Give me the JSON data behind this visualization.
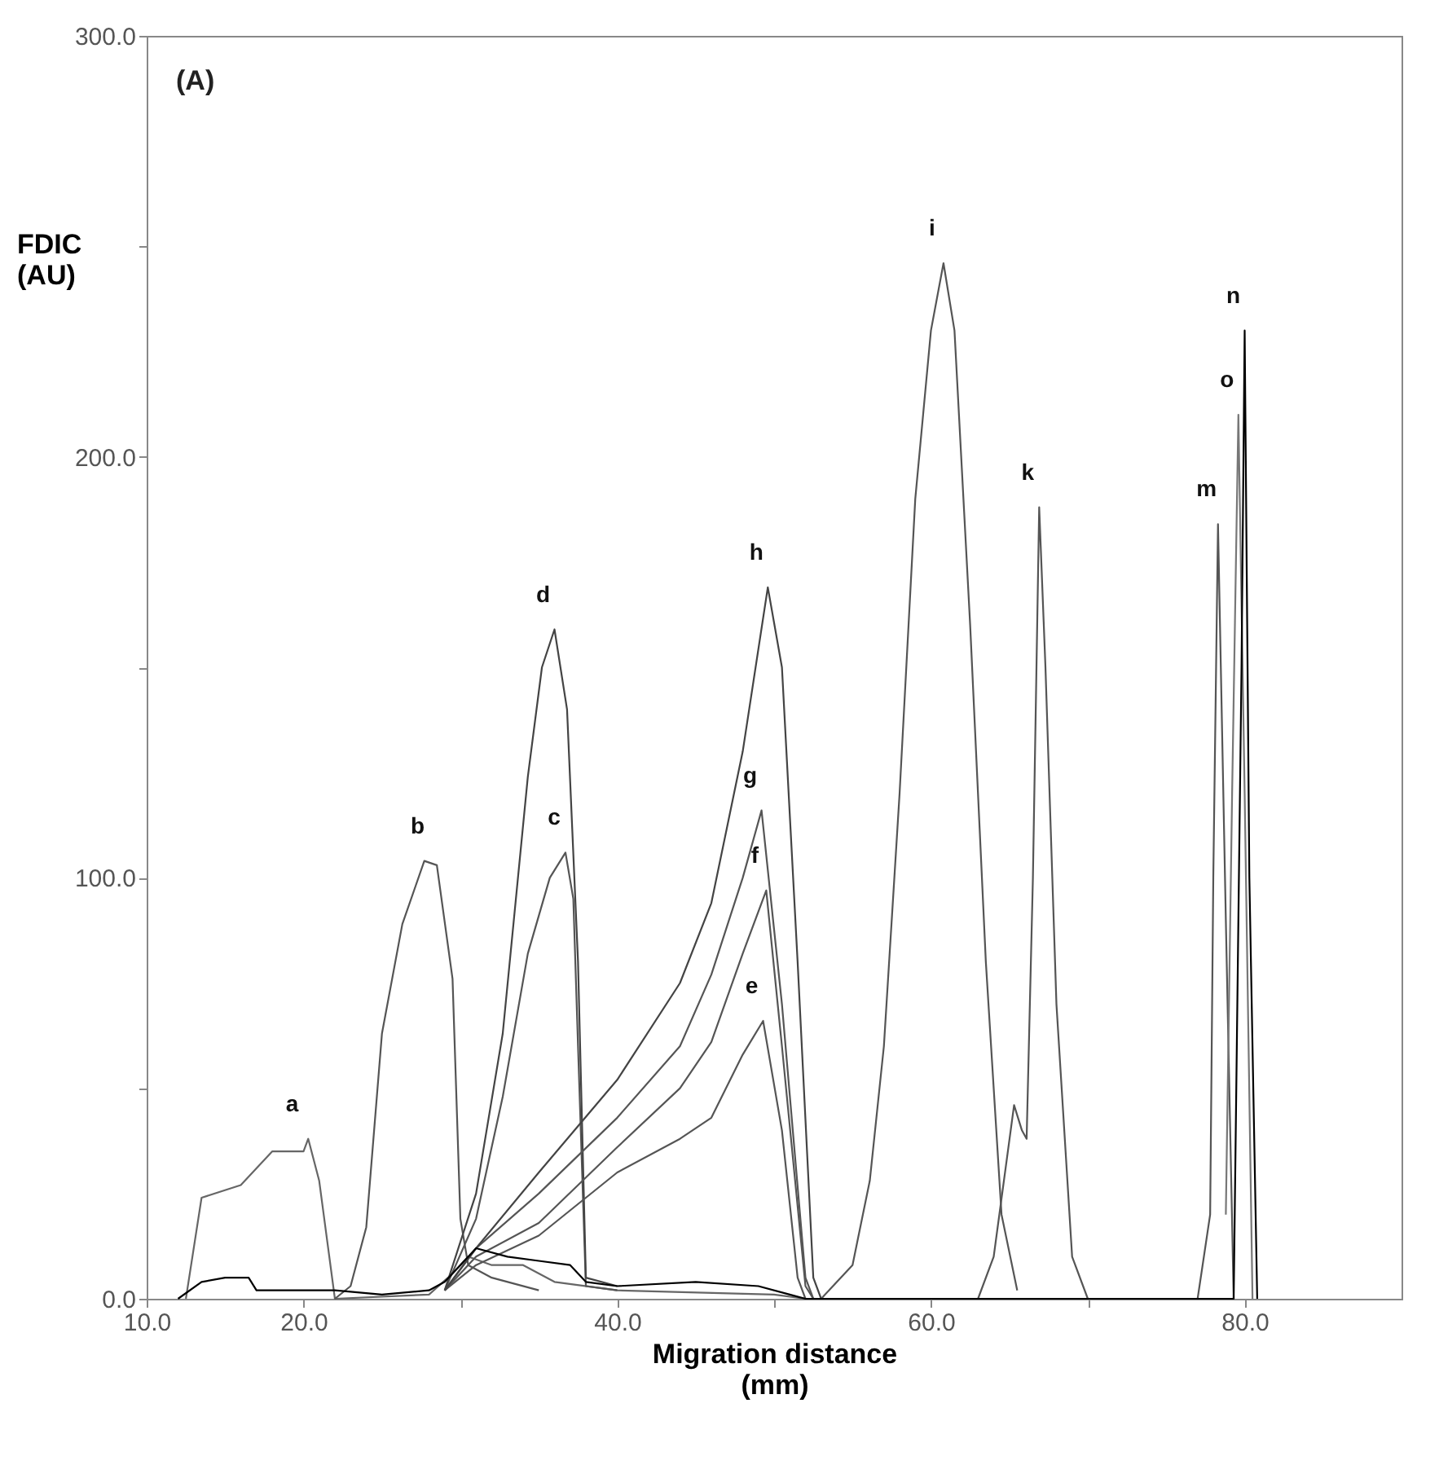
{
  "chart_data": {
    "type": "line",
    "xlabel": "Migration distance\n(mm)",
    "ylabel": "FDIC\n(AU)",
    "xlim": [
      10,
      90
    ],
    "ylim": [
      0,
      300
    ],
    "xticks": [
      {
        "value": 10,
        "label": "10.0"
      },
      {
        "value": 20,
        "label": "20.0"
      },
      {
        "value": 30,
        "label": null
      },
      {
        "value": 40,
        "label": "40.0"
      },
      {
        "value": 50,
        "label": null
      },
      {
        "value": 60,
        "label": "60.0"
      },
      {
        "value": 70,
        "label": null
      },
      {
        "value": 80,
        "label": "80.0"
      }
    ],
    "yticks": [
      {
        "value": 0,
        "label": "0.0"
      },
      {
        "value": 50,
        "label": null
      },
      {
        "value": 100,
        "label": "100.0"
      },
      {
        "value": 150,
        "label": null
      },
      {
        "value": 200,
        "label": "200.0"
      },
      {
        "value": 250,
        "label": null
      },
      {
        "value": 300,
        "label": "300.0"
      }
    ],
    "grid": false,
    "legend": false,
    "marker": "none",
    "line_style": "solid",
    "series": [
      {
        "color": "#666666",
        "x": [
          12.5,
          13.5,
          16,
          18,
          20,
          20.3,
          21,
          22,
          28,
          29.5,
          30.5,
          32,
          34,
          36,
          40,
          50,
          52
        ],
        "values": [
          0,
          24,
          27,
          35,
          35,
          38,
          28,
          0,
          1,
          6,
          10,
          8,
          8,
          4,
          2,
          1,
          0
        ]
      },
      {
        "color": "#555555",
        "x": [
          22,
          23,
          24,
          25,
          26.3,
          27.7,
          28.5,
          29.5,
          30,
          30.5,
          32,
          35
        ],
        "values": [
          0,
          3,
          17,
          63,
          89,
          104,
          103,
          76,
          19,
          8,
          5,
          2
        ]
      },
      {
        "color": "#555555",
        "x": [
          29,
          31,
          32.7,
          34.3,
          35.7,
          36.7,
          37.2,
          37.5,
          38,
          40
        ],
        "values": [
          2,
          19,
          48,
          82,
          100,
          106,
          95,
          60,
          3,
          2
        ]
      },
      {
        "color": "#444444",
        "x": [
          29,
          31,
          32.7,
          34.3,
          35.2,
          36,
          36.8,
          37.5,
          38,
          40
        ],
        "values": [
          2,
          25,
          63,
          124,
          150,
          159,
          140,
          80,
          5,
          3
        ]
      },
      {
        "color": "#555555",
        "x": [
          29,
          31,
          35,
          40,
          44,
          46,
          48,
          49.3,
          50.5,
          51.5,
          52
        ],
        "values": [
          2,
          8,
          15,
          30,
          38,
          43,
          58,
          66,
          40,
          5,
          0
        ]
      },
      {
        "color": "#555555",
        "x": [
          29,
          31,
          35,
          40,
          44,
          46,
          48,
          49.5,
          50.5,
          52,
          52.5
        ],
        "values": [
          2,
          10,
          18,
          36,
          50,
          61,
          82,
          97,
          60,
          3,
          0
        ]
      },
      {
        "color": "#555555",
        "x": [
          29,
          31,
          35,
          40,
          44,
          46,
          48,
          49.2,
          50.5,
          52,
          52.5
        ],
        "values": [
          2,
          12,
          25,
          43,
          60,
          77,
          100,
          116,
          70,
          5,
          0
        ]
      },
      {
        "color": "#444444",
        "x": [
          29,
          31,
          35,
          40,
          44,
          46,
          48,
          49.6,
          50.5,
          51.5,
          52.5,
          53
        ],
        "values": [
          2,
          12,
          30,
          52,
          75,
          94,
          130,
          169,
          150,
          80,
          5,
          0
        ]
      },
      {
        "color": "#555555",
        "x": [
          53,
          55,
          56.1,
          57,
          58,
          59,
          60,
          60.8,
          61.5,
          62.5,
          63.5,
          64.5,
          65.5
        ],
        "values": [
          0,
          8,
          28,
          60,
          120,
          190,
          230,
          246,
          230,
          160,
          80,
          20,
          2
        ]
      },
      {
        "color": "#555555",
        "x": [
          63,
          64,
          65.3,
          65.8,
          66.1,
          66.5,
          66.9,
          67.3,
          68,
          69,
          70
        ],
        "values": [
          0,
          10,
          46,
          40,
          38,
          100,
          188,
          150,
          70,
          10,
          0
        ]
      },
      {
        "color": "#555555",
        "x": [
          77,
          77.8,
          78,
          78.3,
          78.8,
          79.3
        ],
        "values": [
          0,
          20,
          100,
          184,
          90,
          0
        ]
      },
      {
        "color": "#777777",
        "x": [
          78.8,
          79.2,
          79.6,
          80,
          80.5
        ],
        "values": [
          20,
          120,
          210,
          120,
          0
        ]
      },
      {
        "color": "#000000",
        "x": [
          12,
          13.5,
          15,
          16.5,
          17,
          22,
          25,
          28,
          29,
          30,
          31,
          33,
          35,
          37,
          38,
          40,
          45,
          49,
          51,
          52,
          79.3,
          79.8,
          80,
          80.3,
          80.8
        ],
        "values": [
          0,
          4,
          5,
          5,
          2,
          2,
          1,
          2,
          4,
          8,
          12,
          10,
          9,
          8,
          4,
          3,
          4,
          3,
          1,
          0,
          0,
          150,
          230,
          100,
          0
        ]
      }
    ],
    "annotations": [
      "(A)",
      {
        "text": "a",
        "x": 20,
        "y": 38
      },
      {
        "text": "b",
        "x": 28,
        "y": 104
      },
      {
        "text": "c",
        "x": 36.7,
        "y": 106
      },
      {
        "text": "d",
        "x": 36,
        "y": 159
      },
      {
        "text": "e",
        "x": 49.3,
        "y": 66
      },
      {
        "text": "f",
        "x": 49.5,
        "y": 97
      },
      {
        "text": "g",
        "x": 49.2,
        "y": 116
      },
      {
        "text": "h",
        "x": 49.6,
        "y": 169
      },
      {
        "text": "i",
        "x": 60.8,
        "y": 246
      },
      {
        "text": "k",
        "x": 66.9,
        "y": 188
      },
      {
        "text": "m",
        "x": 78.3,
        "y": 184
      },
      {
        "text": "o",
        "x": 79.6,
        "y": 210
      },
      {
        "text": "n",
        "x": 80,
        "y": 230
      }
    ]
  }
}
